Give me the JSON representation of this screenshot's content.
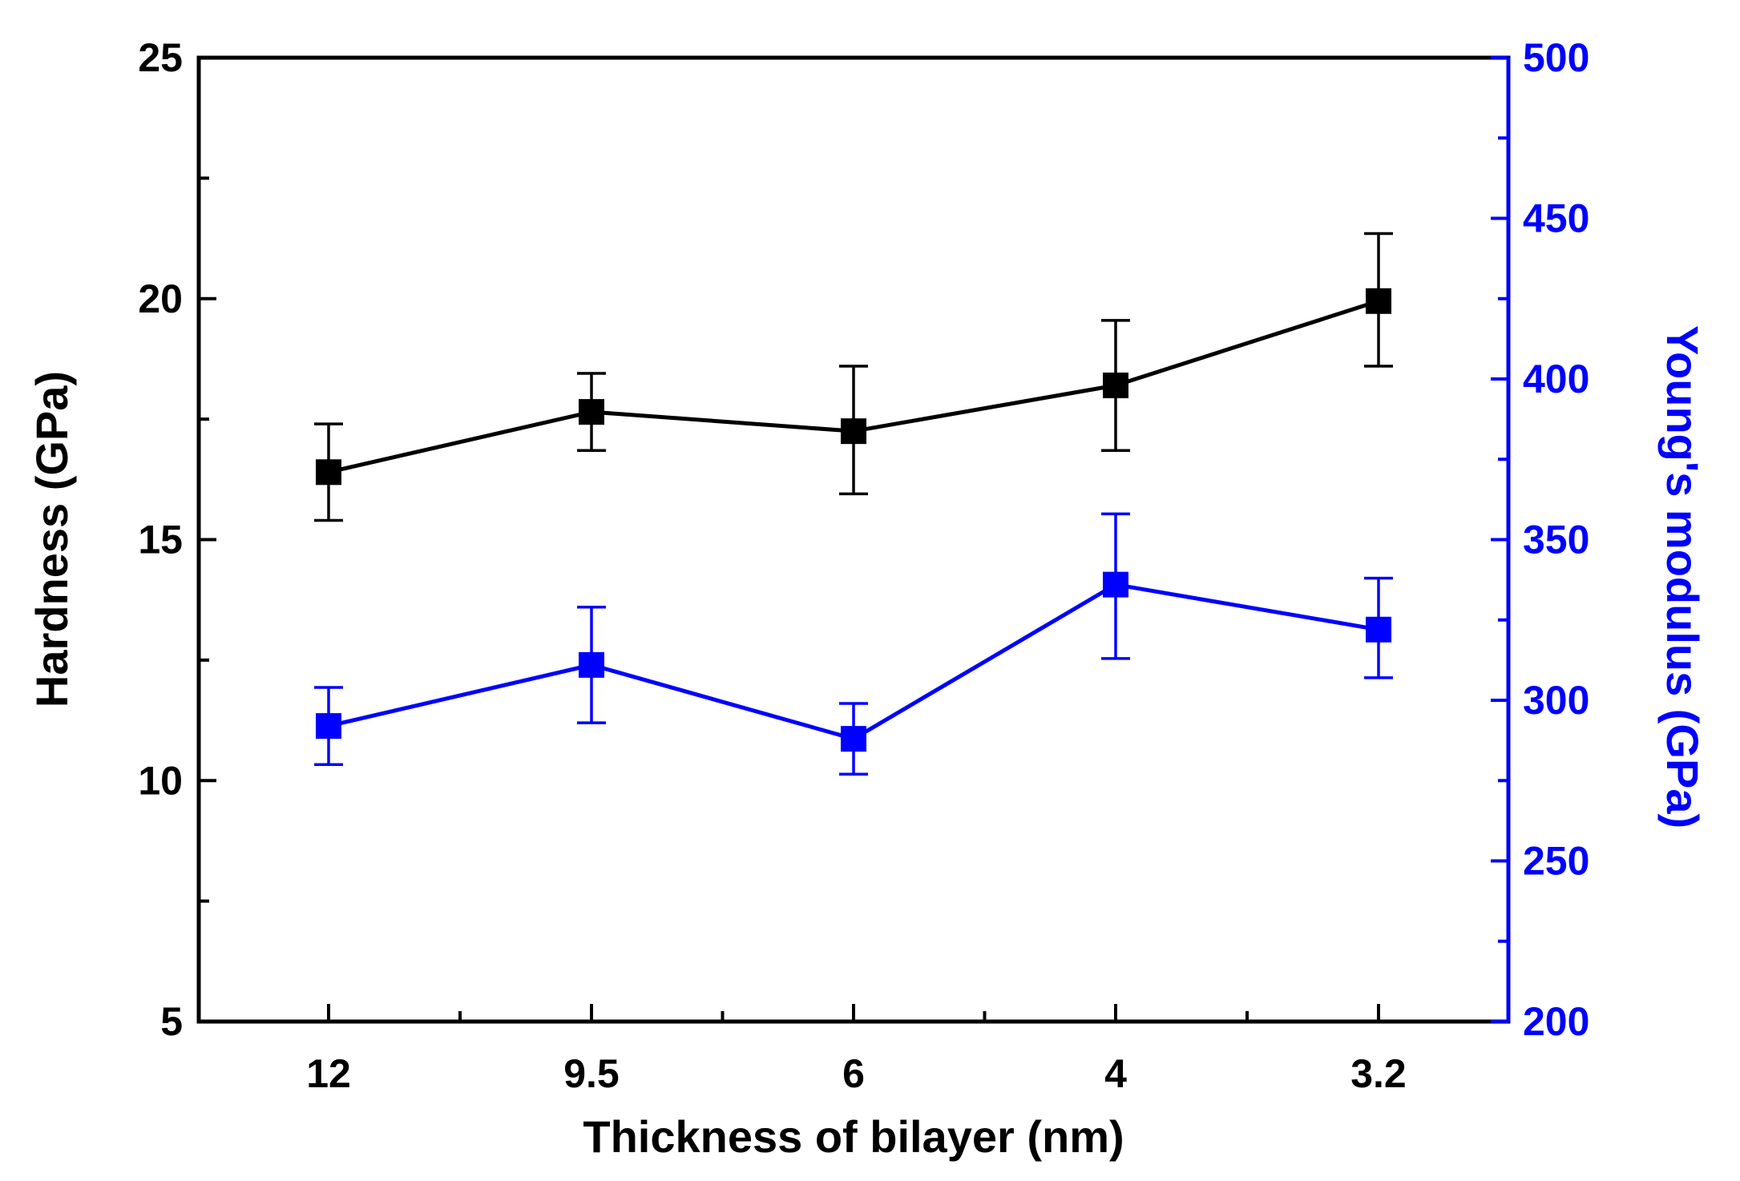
{
  "chart_data": {
    "type": "line",
    "title": "",
    "categories": [
      "12",
      "9.5",
      "6",
      "4",
      "3.2"
    ],
    "xlabel": "Thickness of bilayer (nm)",
    "ylabel": "Hardness (GPa)",
    "y2label": "Young's modulus (GPa)",
    "ylim": [
      5,
      25
    ],
    "y2lim": [
      200,
      500
    ],
    "y_ticks": [
      "5",
      "10",
      "15",
      "20",
      "25"
    ],
    "y2_ticks": [
      "200",
      "250",
      "300",
      "350",
      "400",
      "450",
      "500"
    ],
    "grid": false,
    "legend": "none",
    "series": [
      {
        "name": "Hardness",
        "axis": "left",
        "color": "#000000",
        "marker": "square",
        "values": [
          16.4,
          17.65,
          17.25,
          18.2,
          19.95
        ],
        "err_low": [
          15.4,
          16.85,
          15.95,
          16.85,
          18.6
        ],
        "err_high": [
          17.4,
          18.45,
          18.6,
          19.55,
          21.35
        ]
      },
      {
        "name": "Young's modulus",
        "axis": "right",
        "color": "#0000ff",
        "marker": "square",
        "values": [
          292,
          311,
          288,
          336,
          322
        ],
        "err_low": [
          280,
          293,
          277,
          313,
          307
        ],
        "err_high": [
          304,
          329,
          299,
          358,
          338
        ]
      }
    ]
  }
}
